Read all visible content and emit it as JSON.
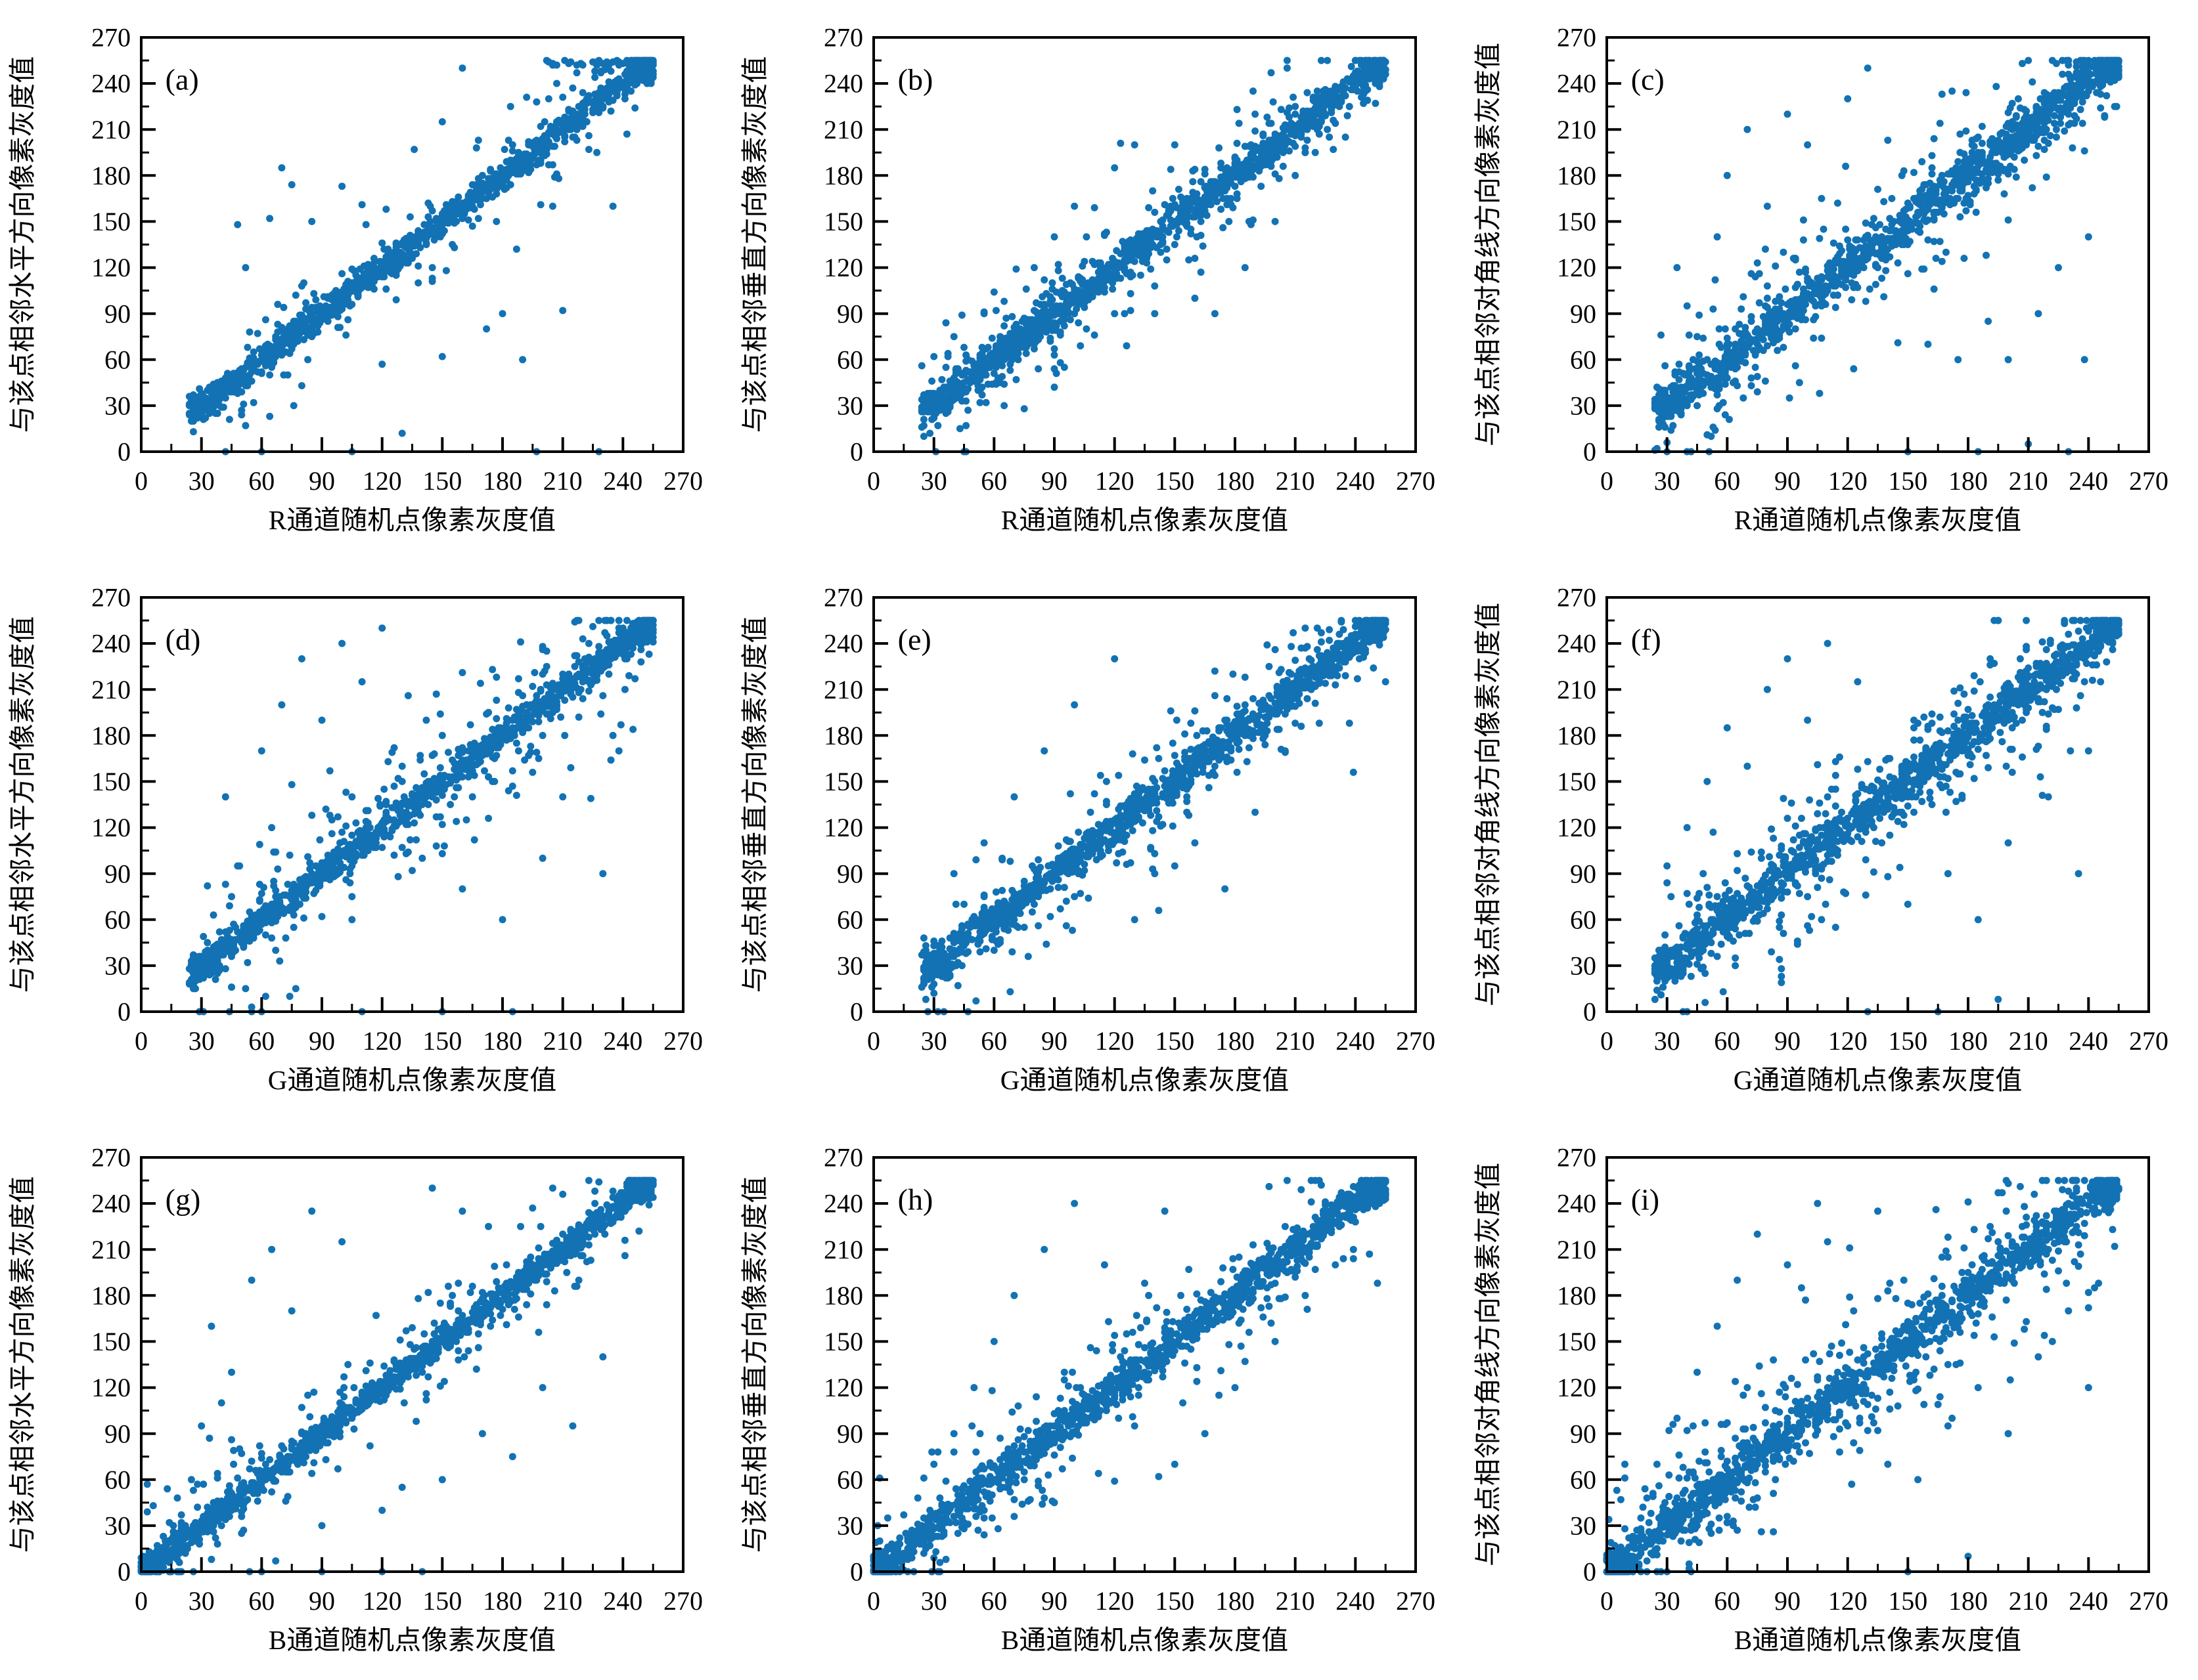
{
  "figure": {
    "background": "#ffffff",
    "point_color": "#1272b4",
    "axis_color": "#000000",
    "axis_min": 0,
    "axis_max": 270,
    "minor_step": 15,
    "major_step": 30,
    "tick_values": [
      0,
      30,
      60,
      90,
      120,
      150,
      180,
      210,
      240,
      270
    ],
    "data_value_max": 255
  },
  "chart_data": [
    {
      "id": "a",
      "tag": "(a)",
      "type": "scatter",
      "xlabel": "R通道随机点像素灰度值",
      "ylabel": "与该点相邻水平方向像素灰度值",
      "xlim": [
        0,
        270
      ],
      "ylim": [
        0,
        270
      ],
      "band": {
        "n": 1250,
        "xmin": 24,
        "xmax": 255,
        "sigma_tight": 4.5,
        "sigma_wide": 18,
        "wide_frac": 0.14,
        "seed": 101
      },
      "corner_cluster": {
        "n": 190,
        "lo": 244,
        "hi": 255
      },
      "start_clump": {
        "n": 60,
        "lo": 24,
        "hi": 38
      },
      "top_edge": {
        "n": 45,
        "x_lo": 200,
        "x_hi": 255,
        "y_lo": 252,
        "y_hi": 255
      },
      "outliers": [
        [
          42,
          0
        ],
        [
          60,
          0
        ],
        [
          105,
          0
        ],
        [
          197,
          0
        ],
        [
          228,
          0
        ],
        [
          130,
          12
        ],
        [
          48,
          148
        ],
        [
          52,
          120
        ],
        [
          70,
          185
        ],
        [
          75,
          174
        ],
        [
          64,
          152
        ],
        [
          85,
          150
        ],
        [
          100,
          173
        ],
        [
          150,
          215
        ],
        [
          160,
          250
        ],
        [
          145,
          120
        ],
        [
          155,
          135
        ],
        [
          180,
          90
        ],
        [
          190,
          60
        ],
        [
          205,
          160
        ],
        [
          210,
          92
        ],
        [
          235,
          160
        ],
        [
          150,
          62
        ],
        [
          120,
          57
        ],
        [
          172,
          80
        ],
        [
          68,
          96
        ],
        [
          112,
          148
        ]
      ]
    },
    {
      "id": "b",
      "tag": "(b)",
      "type": "scatter",
      "xlabel": "R通道随机点像素灰度值",
      "ylabel": "与该点相邻垂直方向像素灰度值",
      "xlim": [
        0,
        270
      ],
      "ylim": [
        0,
        270
      ],
      "band": {
        "n": 1250,
        "xmin": 24,
        "xmax": 255,
        "sigma_tight": 6,
        "sigma_wide": 22,
        "wide_frac": 0.2,
        "seed": 202
      },
      "corner_cluster": {
        "n": 120,
        "lo": 244,
        "hi": 255
      },
      "start_clump": {
        "n": 50,
        "lo": 24,
        "hi": 38
      },
      "outliers": [
        [
          30,
          62
        ],
        [
          40,
          75
        ],
        [
          55,
          90
        ],
        [
          80,
          120
        ],
        [
          90,
          140
        ],
        [
          100,
          160
        ],
        [
          160,
          100
        ],
        [
          170,
          90
        ],
        [
          185,
          120
        ],
        [
          200,
          150
        ],
        [
          120,
          185
        ],
        [
          130,
          200
        ],
        [
          140,
          90
        ],
        [
          210,
          180
        ],
        [
          220,
          195
        ],
        [
          65,
          30
        ],
        [
          75,
          28
        ],
        [
          95,
          55
        ],
        [
          150,
          200
        ],
        [
          235,
          205
        ]
      ]
    },
    {
      "id": "c",
      "tag": "(c)",
      "type": "scatter",
      "xlabel": "R通道随机点像素灰度值",
      "ylabel": "与该点相邻对角线方向像素灰度值",
      "xlim": [
        0,
        270
      ],
      "ylim": [
        0,
        270
      ],
      "band": {
        "n": 1300,
        "xmin": 24,
        "xmax": 255,
        "sigma_tight": 7.5,
        "sigma_wide": 26,
        "wide_frac": 0.26,
        "seed": 303
      },
      "corner_cluster": {
        "n": 150,
        "lo": 244,
        "hi": 255
      },
      "start_clump": {
        "n": 55,
        "lo": 24,
        "hi": 38
      },
      "outliers": [
        [
          35,
          120
        ],
        [
          40,
          95
        ],
        [
          55,
          140
        ],
        [
          60,
          180
        ],
        [
          70,
          210
        ],
        [
          80,
          160
        ],
        [
          90,
          220
        ],
        [
          100,
          200
        ],
        [
          150,
          0
        ],
        [
          185,
          0
        ],
        [
          210,
          5
        ],
        [
          230,
          0
        ],
        [
          160,
          70
        ],
        [
          175,
          60
        ],
        [
          190,
          85
        ],
        [
          200,
          60
        ],
        [
          215,
          90
        ],
        [
          225,
          120
        ],
        [
          240,
          140
        ],
        [
          120,
          230
        ],
        [
          130,
          250
        ],
        [
          45,
          75
        ],
        [
          50,
          60
        ],
        [
          238,
          60
        ],
        [
          88,
          130
        ],
        [
          205,
          230
        ]
      ]
    },
    {
      "id": "d",
      "tag": "(d)",
      "type": "scatter",
      "xlabel": "G通道随机点像素灰度值",
      "ylabel": "与该点相邻水平方向像素灰度值",
      "xlim": [
        0,
        270
      ],
      "ylim": [
        0,
        270
      ],
      "band": {
        "n": 1250,
        "xmin": 24,
        "xmax": 255,
        "sigma_tight": 5,
        "sigma_wide": 26,
        "wide_frac": 0.22,
        "seed": 404
      },
      "corner_cluster": {
        "n": 85,
        "lo": 244,
        "hi": 255
      },
      "start_clump": {
        "n": 60,
        "lo": 24,
        "hi": 38
      },
      "outliers": [
        [
          55,
          0
        ],
        [
          110,
          0
        ],
        [
          150,
          0
        ],
        [
          185,
          0
        ],
        [
          42,
          140
        ],
        [
          60,
          170
        ],
        [
          70,
          200
        ],
        [
          80,
          230
        ],
        [
          90,
          190
        ],
        [
          100,
          240
        ],
        [
          110,
          215
        ],
        [
          120,
          250
        ],
        [
          65,
          120
        ],
        [
          140,
          100
        ],
        [
          160,
          80
        ],
        [
          180,
          60
        ],
        [
          200,
          100
        ],
        [
          210,
          140
        ],
        [
          150,
          180
        ],
        [
          130,
          160
        ],
        [
          48,
          95
        ],
        [
          230,
          90
        ],
        [
          75,
          148
        ],
        [
          95,
          125
        ]
      ]
    },
    {
      "id": "e",
      "tag": "(e)",
      "type": "scatter",
      "xlabel": "G通道随机点像素灰度值",
      "ylabel": "与该点相邻垂直方向像素灰度值",
      "xlim": [
        0,
        270
      ],
      "ylim": [
        0,
        270
      ],
      "band": {
        "n": 1250,
        "xmin": 24,
        "xmax": 255,
        "sigma_tight": 6,
        "sigma_wide": 22,
        "wide_frac": 0.2,
        "seed": 505
      },
      "corner_cluster": {
        "n": 90,
        "lo": 244,
        "hi": 255
      },
      "start_clump": {
        "n": 55,
        "lo": 24,
        "hi": 38
      },
      "outliers": [
        [
          40,
          90
        ],
        [
          55,
          110
        ],
        [
          70,
          140
        ],
        [
          85,
          170
        ],
        [
          100,
          200
        ],
        [
          120,
          230
        ],
        [
          140,
          90
        ],
        [
          160,
          110
        ],
        [
          175,
          80
        ],
        [
          190,
          130
        ],
        [
          205,
          170
        ],
        [
          60,
          40
        ],
        [
          75,
          55
        ],
        [
          215,
          250
        ],
        [
          45,
          70
        ],
        [
          130,
          60
        ],
        [
          110,
          142
        ],
        [
          150,
          95
        ]
      ]
    },
    {
      "id": "f",
      "tag": "(f)",
      "type": "scatter",
      "xlabel": "G通道随机点像素灰度值",
      "ylabel": "与该点相邻对角线方向像素灰度值",
      "xlim": [
        0,
        270
      ],
      "ylim": [
        0,
        270
      ],
      "band": {
        "n": 1300,
        "xmin": 24,
        "xmax": 255,
        "sigma_tight": 7.5,
        "sigma_wide": 28,
        "wide_frac": 0.26,
        "seed": 606
      },
      "corner_cluster": {
        "n": 110,
        "lo": 244,
        "hi": 255
      },
      "start_clump": {
        "n": 55,
        "lo": 24,
        "hi": 38
      },
      "outliers": [
        [
          30,
          95
        ],
        [
          40,
          120
        ],
        [
          50,
          150
        ],
        [
          60,
          185
        ],
        [
          70,
          160
        ],
        [
          80,
          210
        ],
        [
          90,
          230
        ],
        [
          100,
          190
        ],
        [
          130,
          0
        ],
        [
          165,
          0
        ],
        [
          195,
          8
        ],
        [
          150,
          70
        ],
        [
          170,
          90
        ],
        [
          185,
          60
        ],
        [
          200,
          110
        ],
        [
          220,
          140
        ],
        [
          235,
          90
        ],
        [
          110,
          240
        ],
        [
          55,
          75
        ],
        [
          240,
          170
        ],
        [
          45,
          50
        ],
        [
          125,
          215
        ]
      ]
    },
    {
      "id": "g",
      "tag": "(g)",
      "type": "scatter",
      "xlabel": "B通道随机点像素灰度值",
      "ylabel": "与该点相邻水平方向像素灰度值",
      "xlim": [
        0,
        270
      ],
      "ylim": [
        0,
        270
      ],
      "band": {
        "n": 1350,
        "xmin": 0,
        "xmax": 255,
        "sigma_tight": 4.5,
        "sigma_wide": 22,
        "wide_frac": 0.16,
        "seed": 707
      },
      "corner_cluster": {
        "n": 120,
        "lo": 242,
        "hi": 255
      },
      "origin_cluster": {
        "n": 130,
        "lo": 0,
        "hi": 10
      },
      "outliers": [
        [
          60,
          0
        ],
        [
          90,
          0
        ],
        [
          120,
          0
        ],
        [
          140,
          0
        ],
        [
          35,
          160
        ],
        [
          45,
          130
        ],
        [
          55,
          190
        ],
        [
          65,
          210
        ],
        [
          75,
          170
        ],
        [
          85,
          235
        ],
        [
          100,
          215
        ],
        [
          30,
          95
        ],
        [
          40,
          110
        ],
        [
          150,
          60
        ],
        [
          170,
          90
        ],
        [
          185,
          75
        ],
        [
          200,
          120
        ],
        [
          215,
          95
        ],
        [
          230,
          140
        ],
        [
          120,
          40
        ],
        [
          130,
          55
        ],
        [
          145,
          250
        ],
        [
          160,
          235
        ],
        [
          25,
          60
        ],
        [
          205,
          250
        ]
      ]
    },
    {
      "id": "h",
      "tag": "(h)",
      "type": "scatter",
      "xlabel": "B通道随机点像素灰度值",
      "ylabel": "与该点相邻垂直方向像素灰度值",
      "xlim": [
        0,
        270
      ],
      "ylim": [
        0,
        270
      ],
      "band": {
        "n": 1350,
        "xmin": 0,
        "xmax": 255,
        "sigma_tight": 6,
        "sigma_wide": 24,
        "wide_frac": 0.2,
        "seed": 808
      },
      "corner_cluster": {
        "n": 120,
        "lo": 242,
        "hi": 255
      },
      "origin_cluster": {
        "n": 120,
        "lo": 0,
        "hi": 10
      },
      "outliers": [
        [
          30,
          70
        ],
        [
          40,
          90
        ],
        [
          50,
          120
        ],
        [
          60,
          150
        ],
        [
          70,
          180
        ],
        [
          85,
          210
        ],
        [
          100,
          240
        ],
        [
          115,
          200
        ],
        [
          130,
          95
        ],
        [
          150,
          70
        ],
        [
          165,
          90
        ],
        [
          180,
          120
        ],
        [
          200,
          150
        ],
        [
          215,
          180
        ],
        [
          55,
          35
        ],
        [
          75,
          60
        ],
        [
          230,
          200
        ],
        [
          145,
          235
        ],
        [
          42,
          25
        ],
        [
          95,
          130
        ]
      ]
    },
    {
      "id": "i",
      "tag": "(i)",
      "type": "scatter",
      "xlabel": "B通道随机点像素灰度值",
      "ylabel": "与该点相邻对角线方向像素灰度值",
      "xlim": [
        0,
        270
      ],
      "ylim": [
        0,
        270
      ],
      "band": {
        "n": 1400,
        "xmin": 0,
        "xmax": 255,
        "sigma_tight": 7.5,
        "sigma_wide": 30,
        "wide_frac": 0.27,
        "seed": 909
      },
      "corner_cluster": {
        "n": 130,
        "lo": 242,
        "hi": 255
      },
      "origin_cluster": {
        "n": 140,
        "lo": 0,
        "hi": 10
      },
      "outliers": [
        [
          25,
          70
        ],
        [
          35,
          100
        ],
        [
          45,
          130
        ],
        [
          55,
          160
        ],
        [
          65,
          190
        ],
        [
          75,
          220
        ],
        [
          90,
          200
        ],
        [
          105,
          240
        ],
        [
          120,
          95
        ],
        [
          140,
          70
        ],
        [
          155,
          60
        ],
        [
          170,
          95
        ],
        [
          185,
          120
        ],
        [
          200,
          90
        ],
        [
          215,
          140
        ],
        [
          230,
          170
        ],
        [
          30,
          40
        ],
        [
          50,
          55
        ],
        [
          150,
          0
        ],
        [
          180,
          10
        ],
        [
          70,
          120
        ],
        [
          110,
          215
        ],
        [
          240,
          120
        ],
        [
          135,
          235
        ]
      ]
    }
  ]
}
